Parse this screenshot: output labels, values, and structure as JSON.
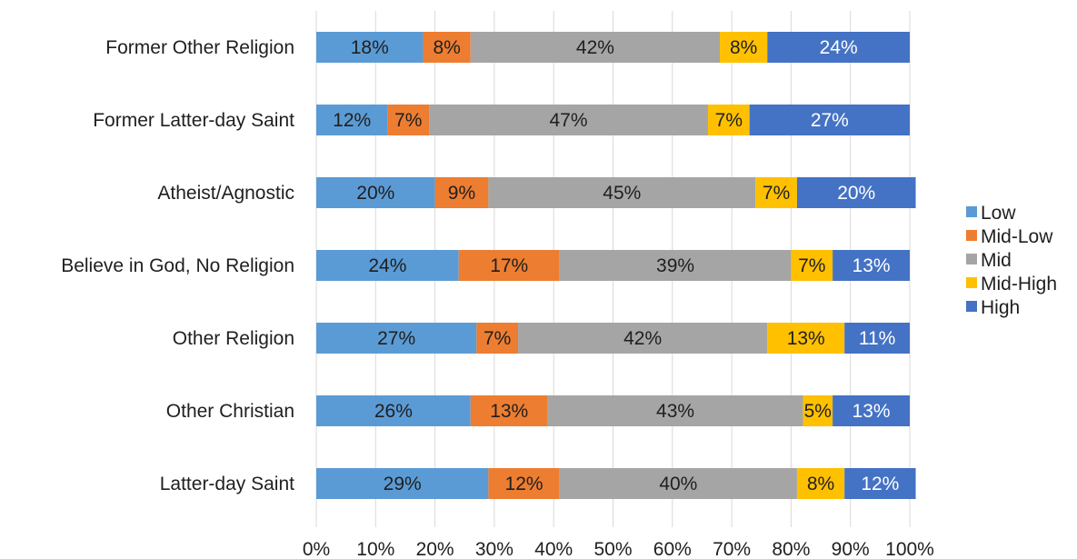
{
  "chart_data": {
    "type": "bar",
    "orientation": "horizontal",
    "stacked": "percent",
    "categories": [
      "Former Other Religion",
      "Former Latter-day Saint",
      "Atheist/Agnostic",
      "Believe in God, No Religion",
      "Other Religion",
      "Other Christian",
      "Latter-day Saint"
    ],
    "series": [
      {
        "name": "Low",
        "color": "#5b9bd5",
        "values": [
          18,
          12,
          20,
          24,
          27,
          26,
          29
        ],
        "labels": [
          "18%",
          "12%",
          "20%",
          "24%",
          "27%",
          "26%",
          "29%"
        ]
      },
      {
        "name": "Mid-Low",
        "color": "#ed7d31",
        "values": [
          8,
          7,
          9,
          17,
          7,
          13,
          12
        ],
        "labels": [
          "8%",
          "7%",
          "9%",
          "17%",
          "7%",
          "13%",
          "12%"
        ]
      },
      {
        "name": "Mid",
        "color": "#a5a5a5",
        "values": [
          42,
          47,
          45,
          39,
          42,
          43,
          40
        ],
        "labels": [
          "42%",
          "47%",
          "45%",
          "39%",
          "42%",
          "43%",
          "40%"
        ]
      },
      {
        "name": "Mid-High",
        "color": "#ffc000",
        "values": [
          8,
          7,
          7,
          7,
          13,
          5,
          8
        ],
        "labels": [
          "8%",
          "7%",
          "7%",
          "7%",
          "13%",
          "5%",
          "8%"
        ]
      },
      {
        "name": "High",
        "color": "#4472c4",
        "values": [
          24,
          27,
          20,
          13,
          11,
          13,
          12
        ],
        "labels": [
          "24%",
          "27%",
          "20%",
          "13%",
          "11%",
          "13%",
          "12%"
        ]
      }
    ],
    "x_ticks": [
      "0%",
      "10%",
      "20%",
      "30%",
      "40%",
      "50%",
      "60%",
      "70%",
      "80%",
      "90%",
      "100%"
    ],
    "xlim": [
      0,
      100
    ],
    "grid": "vertical",
    "legend": "right",
    "title": "",
    "xlabel": "",
    "ylabel": ""
  }
}
